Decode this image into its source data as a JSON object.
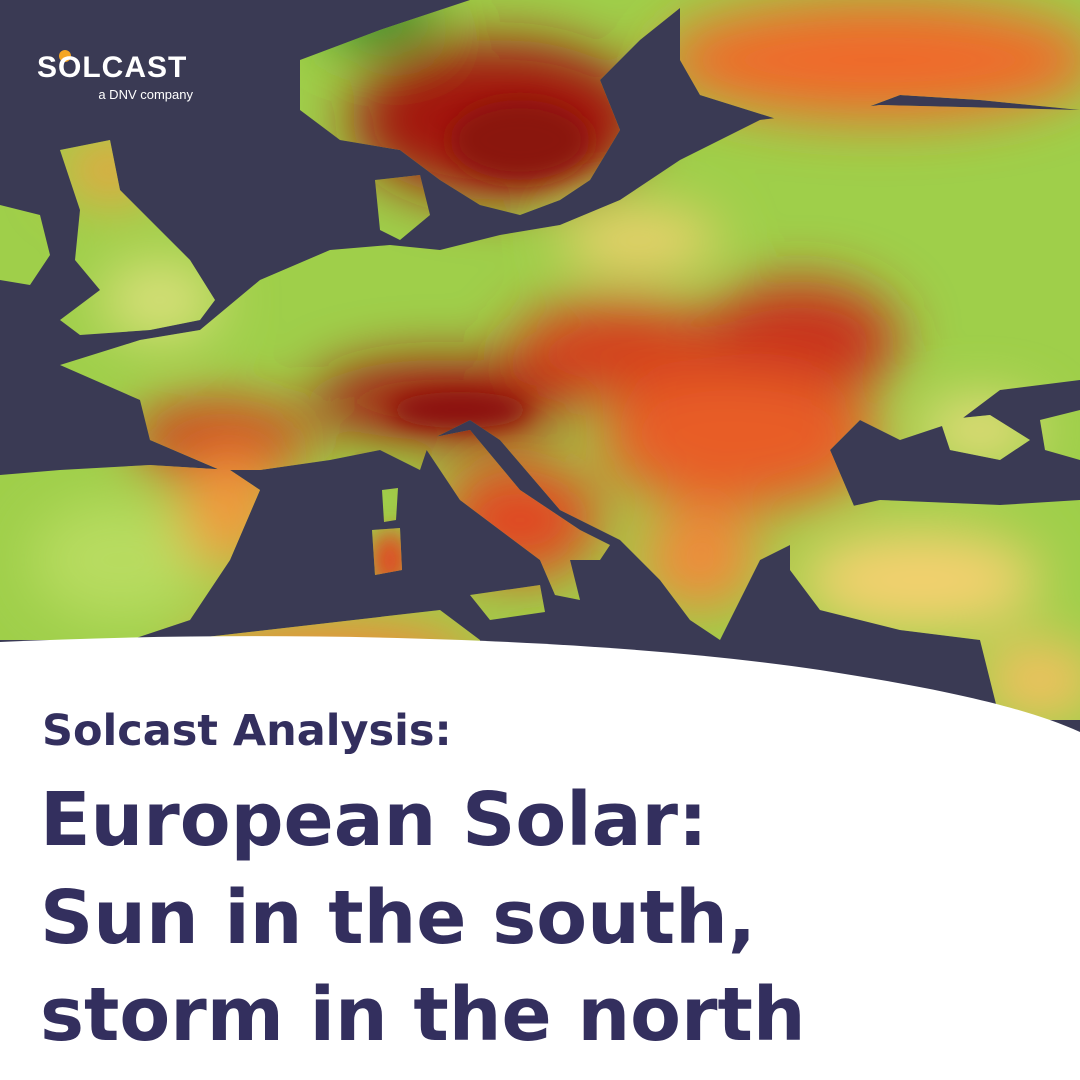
{
  "logo": {
    "name": "SOLCAST",
    "tagline": "a DNV company"
  },
  "heading": {
    "kicker": "Solcast Analysis:",
    "title_lines": [
      "European Solar:",
      "Sun in the south,",
      "storm in the north"
    ]
  }
}
